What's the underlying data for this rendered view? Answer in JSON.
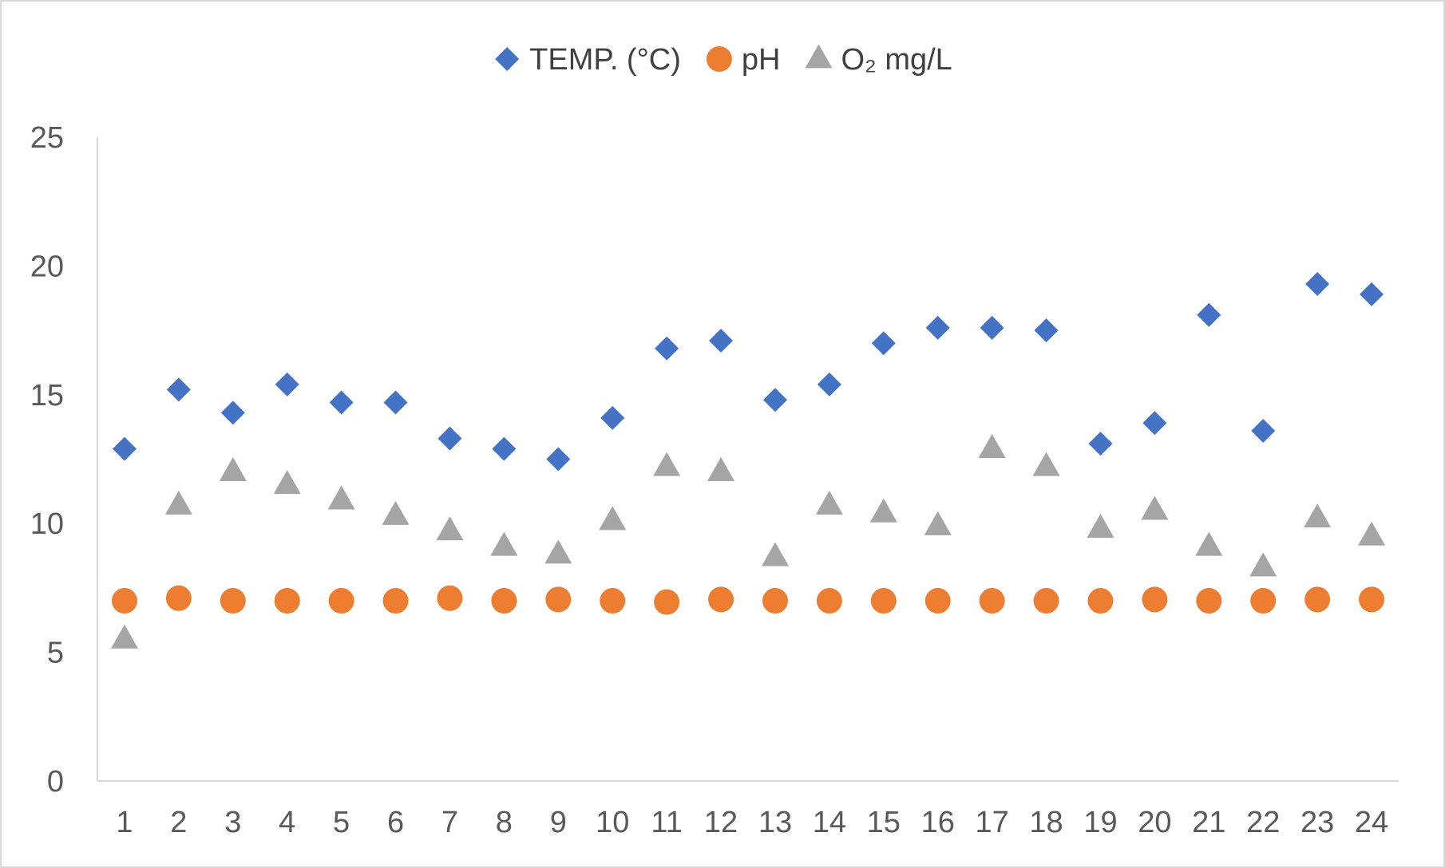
{
  "chart_data": {
    "type": "scatter",
    "title": "",
    "xlabel": "",
    "ylabel": "",
    "x": [
      1,
      2,
      3,
      4,
      5,
      6,
      7,
      8,
      9,
      10,
      11,
      12,
      13,
      14,
      15,
      16,
      17,
      18,
      19,
      20,
      21,
      22,
      23,
      24
    ],
    "x_tick_labels": [
      "1",
      "2",
      "3",
      "4",
      "5",
      "6",
      "7",
      "8",
      "9",
      "10",
      "11",
      "12",
      "13",
      "14",
      "15",
      "16",
      "17",
      "18",
      "19",
      "20",
      "21",
      "22",
      "23",
      "24"
    ],
    "ylim": [
      0,
      25
    ],
    "y_ticks": [
      0,
      5,
      10,
      15,
      20,
      25
    ],
    "grid": false,
    "legend_position": "top-center",
    "series": [
      {
        "name": "TEMP. (°C)",
        "marker": "diamond",
        "color": "#4472C4",
        "values": [
          12.9,
          15.2,
          14.3,
          15.4,
          14.7,
          14.7,
          13.3,
          12.9,
          12.5,
          14.1,
          16.8,
          17.1,
          14.8,
          15.4,
          17.0,
          17.6,
          17.6,
          17.5,
          13.1,
          13.9,
          18.1,
          13.6,
          19.3,
          18.9
        ]
      },
      {
        "name": "pH",
        "marker": "circle",
        "color": "#ED7D31",
        "values": [
          7.0,
          7.1,
          7.0,
          7.0,
          7.0,
          7.0,
          7.1,
          7.0,
          7.05,
          7.0,
          6.95,
          7.05,
          7.0,
          7.0,
          7.0,
          7.0,
          7.0,
          7.0,
          7.0,
          7.05,
          7.0,
          7.0,
          7.05,
          7.05
        ]
      },
      {
        "name": "O₂ mg/L",
        "marker": "triangle",
        "color": "#A5A5A5",
        "values": [
          5.5,
          10.7,
          12.0,
          11.5,
          10.9,
          10.3,
          9.7,
          9.1,
          8.8,
          10.1,
          12.2,
          12.0,
          8.7,
          10.7,
          10.4,
          9.9,
          12.9,
          12.2,
          9.8,
          10.5,
          9.1,
          8.3,
          10.2,
          9.5
        ]
      }
    ]
  }
}
